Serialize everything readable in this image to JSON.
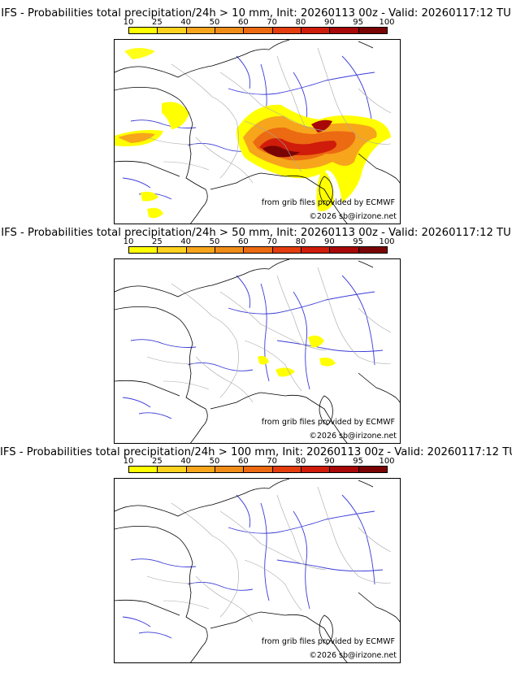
{
  "colorbar": {
    "ticks": [
      "10",
      "25",
      "40",
      "50",
      "60",
      "70",
      "80",
      "90",
      "95",
      "100"
    ],
    "colors": [
      "#ffff00",
      "#ffd21e",
      "#f7a51b",
      "#f08c18",
      "#ec6a12",
      "#e43d0e",
      "#d01c0a",
      "#a80808",
      "#7a0404"
    ]
  },
  "panels": [
    {
      "title": "IFS - Probabilities total precipitation/24h > 10 mm, Init: 20260113 00z - Valid: 20260117:12 TU",
      "threshold_mm": 10,
      "credit": "from grib files provided by ECMWF",
      "copyright": "©2026 sb@irizone.net"
    },
    {
      "title": "IFS - Probabilities total precipitation/24h > 50 mm, Init: 20260113 00z - Valid: 20260117:12 TU",
      "threshold_mm": 50,
      "credit": "from grib files provided by ECMWF",
      "copyright": "©2026 sb@irizone.net"
    },
    {
      "title": "IFS - Probabilities total precipitation/24h > 100 mm, Init: 20260113 00z - Valid: 20260117:12 TU",
      "threshold_mm": 100,
      "credit": "from grib files provided by ECMWF",
      "copyright": "©2026 sb@irizone.net"
    }
  ]
}
